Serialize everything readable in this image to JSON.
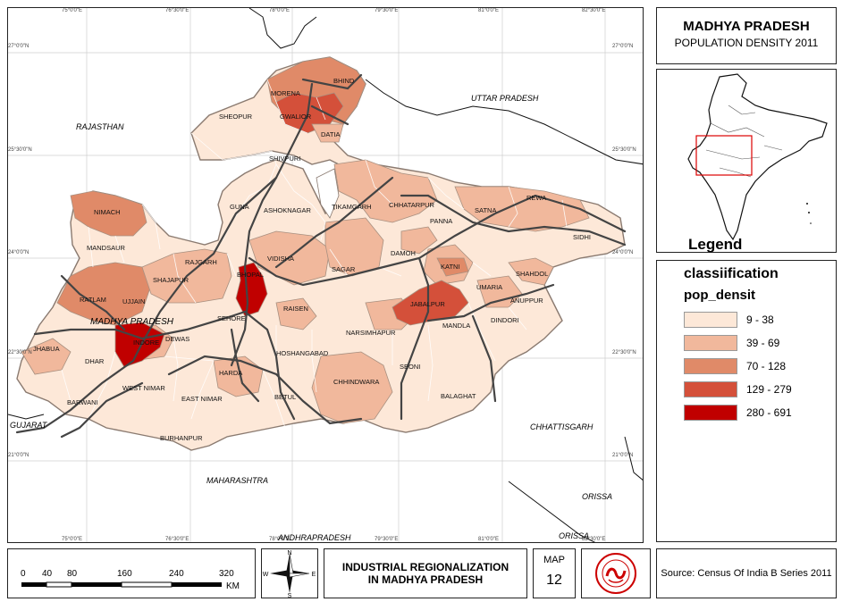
{
  "title": {
    "line1": "MADHYA PRADESH",
    "line2": "POPULATION DENSITY 2011"
  },
  "legend": {
    "heading": "Legend",
    "classification": "classiification",
    "field": "pop_densit",
    "classes": [
      {
        "label": "9 - 38",
        "color": "#fde8d8"
      },
      {
        "label": "39 - 69",
        "color": "#f1b89c"
      },
      {
        "label": "70 - 128",
        "color": "#e08a68"
      },
      {
        "label": "129 - 279",
        "color": "#d4503a"
      },
      {
        "label": "280 - 691",
        "color": "#c00000"
      }
    ]
  },
  "graticule": {
    "top": [
      "75°0'0\"E",
      "76°30'0\"E",
      "78°0'0\"E",
      "79°30'0\"E",
      "81°0'0\"E",
      "82°30'0\"E"
    ],
    "bottom": [
      "75°0'0\"E",
      "76°30'0\"E",
      "78°0'0\"E",
      "79°30'0\"E",
      "81°0'0\"E",
      "82°30'0\"E"
    ],
    "left": [
      "27°0'0\"N",
      "25°30'0\"N",
      "24°0'0\"N",
      "22°30'0\"N",
      "21°0'0\"N"
    ],
    "right": [
      "27°0'0\"N",
      "25°30'0\"N",
      "24°0'0\"N",
      "22°30'0\"N",
      "21°0'0\"N"
    ]
  },
  "neighbours": [
    "RAJASTHAN",
    "UTTAR PRADESH",
    "GUJARAT",
    "MAHARASHTRA",
    "CHHATTISGARH",
    "ORISSA",
    "ANDHRAPRADESH",
    "ORISSA"
  ],
  "districts": [
    "MORENA",
    "BHIND",
    "GWALIOR",
    "DATIA",
    "SHEOPUR",
    "SHIVPURI",
    "GUNA",
    "ASHOKNAGAR",
    "TIKAMGARH",
    "CHHATARPUR",
    "PANNA",
    "SATNA",
    "REWA",
    "SIDHI",
    "NIMACH",
    "MANDSAUR",
    "RATLAM",
    "UJJAIN",
    "SHAJAPUR",
    "RAJGARH",
    "BHOPAL",
    "VIDISHA",
    "SAGAR",
    "DAMOH",
    "KATNI",
    "SHAHDOL",
    "UMARIA",
    "ANUPPUR",
    "JABALPUR",
    "MANDLA",
    "DINDORI",
    "SEHORE",
    "RAISEN",
    "NARSIMHAPUR",
    "JHABUA",
    "DHAR",
    "INDORE",
    "DEWAS",
    "HOSHANGABAD",
    "HARDA",
    "SEONI",
    "CHHINDWARA",
    "BALAGHAT",
    "BARWANI",
    "WEST NIMAR",
    "EAST NIMAR",
    "BETUL",
    "BURHANPUR",
    "TIKAMGARH"
  ],
  "state_label": "MADHYA PRADESH",
  "scale": {
    "ticks": [
      "0",
      "40",
      "80",
      "160",
      "240",
      "320"
    ],
    "unit": "KM"
  },
  "compass": {
    "n": "N",
    "s": "S",
    "e": "E",
    "w": "W"
  },
  "main_title": {
    "line1": "INDUSTRIAL REGIONALIZATION",
    "line2": "IN MADHYA PRADESH"
  },
  "map_number": {
    "label": "MAP",
    "value": "12"
  },
  "source": "Source: Census Of India B Series 2011"
}
